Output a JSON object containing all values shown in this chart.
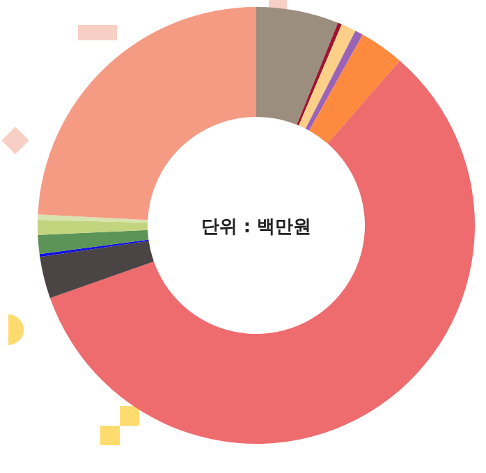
{
  "chart_data": {
    "type": "donut",
    "categories": [
      null,
      null,
      null,
      null,
      null,
      null,
      null,
      null,
      null,
      null,
      null,
      null
    ],
    "values": [
      6.1,
      0.3,
      1.1,
      0.6,
      3.3,
      58.2,
      3.1,
      0.2,
      1.4,
      1.1,
      0.4,
      24.2
    ],
    "colors": [
      "#9c8e7e",
      "#a0122e",
      "#fdd08a",
      "#9b63b8",
      "#fd8a3e",
      "#ee6b6e",
      "#4b4444",
      "#1010e0",
      "#5c9357",
      "#c3d47f",
      "#d8e3ad",
      "#f59b84"
    ],
    "annotations": [
      "단위 : 백만원"
    ]
  }
}
